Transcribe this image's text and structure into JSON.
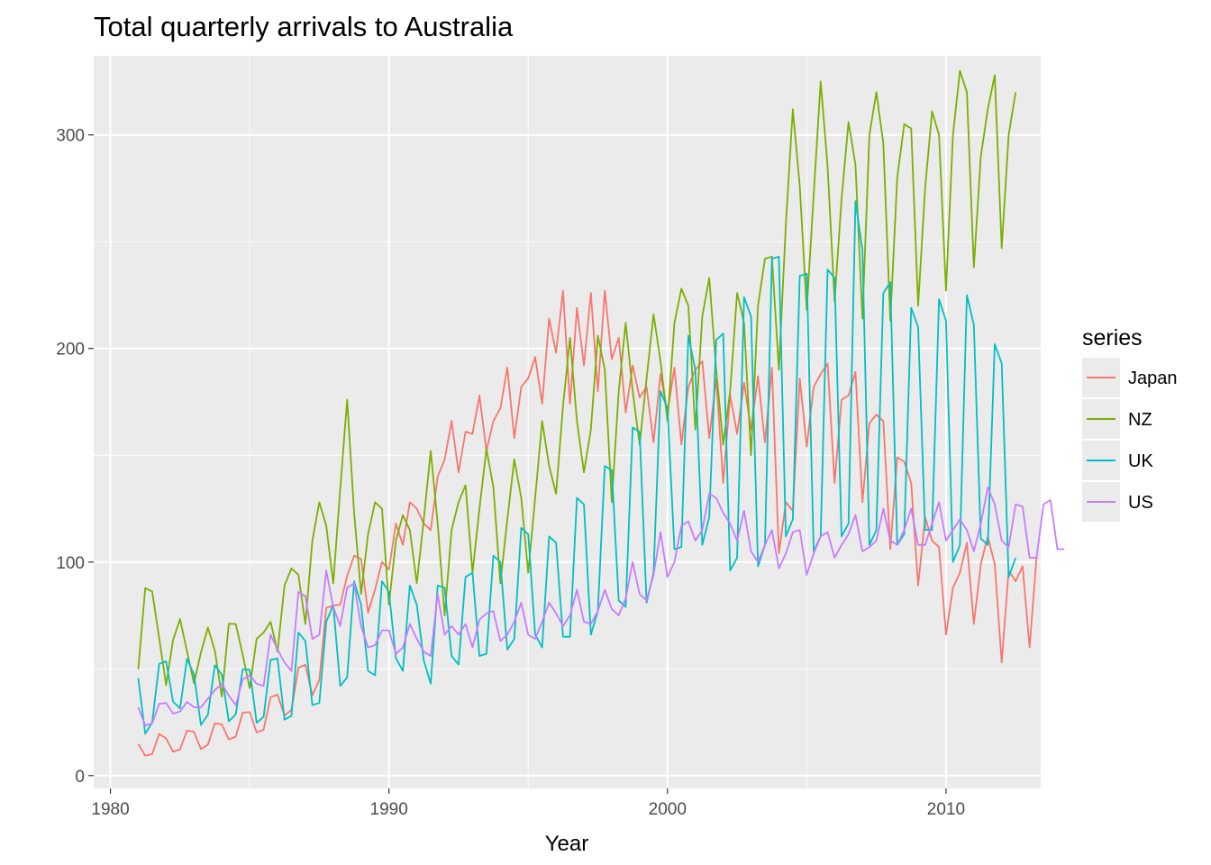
{
  "chart_data": {
    "type": "line",
    "title": "Total quarterly arrivals to Australia",
    "xlabel": "Year",
    "ylabel": "",
    "xlim": [
      1979.4,
      2013.4
    ],
    "ylim": [
      -6,
      337
    ],
    "x_ticks": [
      1980,
      1990,
      2000,
      2010
    ],
    "x_tick_labels": [
      "1980",
      "1990",
      "2000",
      "2010"
    ],
    "y_ticks": [
      0,
      100,
      200,
      300
    ],
    "y_tick_labels": [
      "0",
      "100",
      "200",
      "300"
    ],
    "grid": true,
    "legend": {
      "title": "series",
      "position": "right"
    },
    "x_start": 1981.0,
    "x_step": 0.25,
    "colors": {
      "Japan": "#F8766D",
      "NZ": "#7CAE00",
      "UK": "#00BFC4",
      "US": "#C77CFF",
      "panel": "#EBEBEB",
      "grid": "#FFFFFF"
    },
    "series": [
      {
        "name": "Japan",
        "values": [
          14.8,
          9.3,
          10.1,
          19.5,
          17.4,
          11.2,
          12.3,
          21.1,
          20.5,
          12.4,
          14.5,
          24.5,
          24.0,
          16.9,
          18.2,
          29.5,
          29.7,
          20.2,
          21.5,
          36.7,
          37.9,
          28.1,
          30.8,
          50.5,
          51.9,
          37.6,
          44.7,
          78.5,
          79.6,
          80.0,
          93.5,
          103.0,
          101.5,
          76.3,
          87.0,
          100.0,
          96.5,
          118.0,
          108.0,
          128.0,
          125.0,
          118.0,
          115.0,
          140.0,
          148.0,
          166.0,
          142.0,
          161.0,
          160.0,
          178.0,
          152.0,
          166.0,
          172.0,
          191.0,
          158.0,
          182.0,
          186.0,
          196.0,
          174.0,
          214.0,
          198.0,
          227.0,
          174.0,
          219.0,
          192.0,
          226.0,
          180.0,
          227.0,
          195.0,
          205.0,
          170.0,
          192.0,
          177.0,
          182.0,
          156.0,
          188.0,
          170.0,
          191.0,
          155.0,
          182.0,
          190.0,
          194.0,
          158.0,
          186.0,
          137.0,
          178.0,
          160.0,
          184.0,
          162.0,
          187.0,
          156.0,
          191.0,
          104.0,
          128.0,
          124.0,
          186.0,
          154.0,
          182.0,
          188.0,
          193.0,
          137.0,
          176.0,
          178.0,
          189.0,
          128.0,
          165.0,
          169.0,
          166.0,
          106.0,
          149.0,
          147.0,
          137.0,
          89.0,
          121.0,
          110.0,
          107.0,
          66.0,
          88.0,
          95.0,
          109.0,
          71.0,
          99.0,
          112.0,
          99.0,
          53.0,
          96.0,
          91.0,
          98.0,
          60.0,
          102.0
        ]
      },
      {
        "name": "NZ",
        "values": [
          49.9,
          87.8,
          86.2,
          64.4,
          42.4,
          63.6,
          73.3,
          58.2,
          43.2,
          57.6,
          69.3,
          58.5,
          37.0,
          71.1,
          71.0,
          56.5,
          41.0,
          64.0,
          67.0,
          72.0,
          58.0,
          89.0,
          97.0,
          94.0,
          71.0,
          110.0,
          128.0,
          117.0,
          90.0,
          134.0,
          176.0,
          123.0,
          85.0,
          113.0,
          128.0,
          125.0,
          80.0,
          110.0,
          122.0,
          115.0,
          90.0,
          120.0,
          152.0,
          118.0,
          75.0,
          115.0,
          128.0,
          136.0,
          95.0,
          125.0,
          153.0,
          135.0,
          90.0,
          120.0,
          148.0,
          130.0,
          95.0,
          130.0,
          166.0,
          145.0,
          132.0,
          173.0,
          205.0,
          166.0,
          142.0,
          162.0,
          206.0,
          190.0,
          128.0,
          180.0,
          212.0,
          180.0,
          155.0,
          186.0,
          216.0,
          194.0,
          166.0,
          212.0,
          228.0,
          220.0,
          162.0,
          215.0,
          233.0,
          190.0,
          155.0,
          180.0,
          226.0,
          212.0,
          150.0,
          220.0,
          242.0,
          243.0,
          190.0,
          258.0,
          312.0,
          276.0,
          218.0,
          272.0,
          325.0,
          285.0,
          222.0,
          270.0,
          306.0,
          286.0,
          214.0,
          300.0,
          320.0,
          296.0,
          213.0,
          280.0,
          305.0,
          303.0,
          220.0,
          275.0,
          311.0,
          300.0,
          227.0,
          300.0,
          330.0,
          320.0,
          238.0,
          290.0,
          312.0,
          328.0,
          247.0,
          300.0,
          320.0
        ]
      },
      {
        "name": "UK",
        "values": [
          45.6,
          19.6,
          24.8,
          52.3,
          53.5,
          34.6,
          31.5,
          54.7,
          47.3,
          23.7,
          28.5,
          51.7,
          47.2,
          25.4,
          28.7,
          49.8,
          49.5,
          24.7,
          27.5,
          54.2,
          54.8,
          26.2,
          28.0,
          67.0,
          63.0,
          33.0,
          34.0,
          72.0,
          80.0,
          42.0,
          46.0,
          91.0,
          80.0,
          49.0,
          47.0,
          91.0,
          86.0,
          55.0,
          49.0,
          89.0,
          80.0,
          54.0,
          43.0,
          89.0,
          88.0,
          56.0,
          52.0,
          93.0,
          95.0,
          56.0,
          57.0,
          103.0,
          100.0,
          59.0,
          64.0,
          116.0,
          113.0,
          66.0,
          60.0,
          112.0,
          109.0,
          65.0,
          65.0,
          130.0,
          127.0,
          66.0,
          77.0,
          145.0,
          143.0,
          82.0,
          79.0,
          163.0,
          161.0,
          81.0,
          95.0,
          180.0,
          172.0,
          106.0,
          107.0,
          206.0,
          190.0,
          108.0,
          121.0,
          204.0,
          207.0,
          96.0,
          102.0,
          224.0,
          215.0,
          98.0,
          108.0,
          242.0,
          243.0,
          112.0,
          120.0,
          234.0,
          235.0,
          105.0,
          112.0,
          237.0,
          233.0,
          112.0,
          118.0,
          269.0,
          246.0,
          108.0,
          115.0,
          226.0,
          231.0,
          108.0,
          113.0,
          219.0,
          210.0,
          115.0,
          115.0,
          223.0,
          213.0,
          100.0,
          108.0,
          225.0,
          211.0,
          111.0,
          108.0,
          202.0,
          193.0,
          93.0,
          102.0
        ]
      },
      {
        "name": "US",
        "values": [
          32.0,
          23.5,
          24.5,
          33.6,
          34.0,
          29.0,
          30.0,
          34.5,
          32.0,
          32.0,
          36.0,
          40.0,
          43.0,
          37.5,
          33.0,
          45.0,
          47.0,
          43.0,
          42.0,
          66.0,
          59.0,
          53.0,
          49.0,
          86.0,
          84.0,
          64.0,
          66.0,
          96.0,
          79.0,
          70.0,
          88.0,
          90.0,
          70.0,
          60.0,
          61.0,
          68.0,
          68.0,
          57.0,
          60.0,
          71.0,
          64.0,
          58.0,
          56.0,
          85.0,
          66.0,
          70.0,
          66.0,
          71.0,
          60.0,
          73.0,
          76.0,
          77.0,
          63.0,
          66.0,
          72.0,
          81.0,
          66.0,
          64.0,
          72.0,
          81.0,
          76.0,
          70.0,
          75.0,
          87.0,
          72.0,
          71.0,
          77.0,
          87.0,
          78.0,
          75.0,
          83.0,
          100.0,
          85.0,
          82.0,
          94.0,
          114.0,
          93.0,
          100.0,
          117.0,
          119.0,
          110.0,
          115.0,
          132.0,
          130.0,
          123.0,
          118.0,
          110.0,
          124.0,
          105.0,
          100.0,
          108.0,
          115.0,
          97.0,
          104.0,
          114.0,
          115.0,
          94.0,
          104.0,
          112.0,
          114.0,
          102.0,
          108.0,
          113.0,
          122.0,
          105.0,
          107.0,
          110.0,
          125.0,
          110.0,
          108.0,
          115.0,
          125.0,
          108.0,
          108.0,
          118.0,
          128.0,
          110.0,
          115.0,
          120.0,
          115.0,
          105.0,
          118.0,
          135.0,
          127.0,
          110.0,
          107.0,
          127.0,
          126.0,
          102.0,
          102.0,
          127.0,
          129.0,
          106.0,
          106.0
        ]
      }
    ]
  }
}
